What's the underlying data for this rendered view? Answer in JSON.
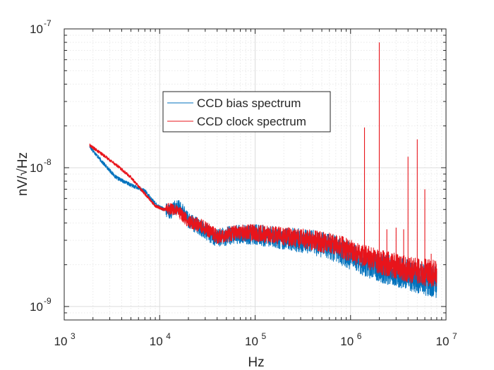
{
  "chart_data": {
    "type": "line",
    "title": "",
    "xlabel": "Hz",
    "ylabel": "nV/√Hz",
    "xscale": "log",
    "yscale": "log",
    "xlim": [
      1000,
      10000000
    ],
    "ylim": [
      8e-10,
      1e-07
    ],
    "grid": true,
    "minor_grid": true,
    "legend_position": "upper-center",
    "x_ticks": [
      {
        "value": 1000,
        "base": "10",
        "exp": "3"
      },
      {
        "value": 10000,
        "base": "10",
        "exp": "4"
      },
      {
        "value": 100000,
        "base": "10",
        "exp": "5"
      },
      {
        "value": 1000000,
        "base": "10",
        "exp": "6"
      },
      {
        "value": 10000000,
        "base": "10",
        "exp": "7"
      }
    ],
    "y_ticks": [
      {
        "value": 1e-09,
        "base": "10",
        "exp": "-9"
      },
      {
        "value": 1e-08,
        "base": "10",
        "exp": "-8"
      },
      {
        "value": 1e-07,
        "base": "10",
        "exp": "-7"
      }
    ],
    "series": [
      {
        "name": "CCD bias spectrum",
        "color": "#0072BD",
        "noise_dex": 0.09,
        "x": [
          1850,
          2500,
          3500,
          5000,
          7000,
          9000,
          11000,
          13000,
          15000,
          17000,
          20000,
          25000,
          30000,
          40000,
          60000,
          100000,
          200000,
          400000,
          700000,
          1000000,
          2000000,
          4000000,
          8000000
        ],
        "y": [
          1.42e-08,
          1.1e-08,
          8.5e-09,
          7.5e-09,
          6.8e-09,
          5.5e-09,
          5e-09,
          4.8e-09,
          5.3e-09,
          5e-09,
          4.2e-09,
          3.8e-09,
          3.5e-09,
          3.1e-09,
          3.3e-09,
          3.3e-09,
          3.1e-09,
          2.9e-09,
          2.6e-09,
          2.3e-09,
          1.9e-09,
          1.7e-09,
          1.5e-09
        ]
      },
      {
        "name": "CCD clock spectrum",
        "color": "#E8141B",
        "noise_dex": 0.075,
        "x": [
          1850,
          2500,
          3500,
          5000,
          7000,
          9000,
          11000,
          13000,
          15000,
          17000,
          20000,
          25000,
          30000,
          40000,
          60000,
          100000,
          200000,
          400000,
          700000,
          1000000,
          2000000,
          4000000,
          8000000
        ],
        "y": [
          1.45e-08,
          1.25e-08,
          1.05e-08,
          8.5e-09,
          6.5e-09,
          5.3e-09,
          5e-09,
          5.1e-09,
          4.9e-09,
          4.6e-09,
          4.1e-09,
          3.9e-09,
          3.7e-09,
          3.2e-09,
          3.4e-09,
          3.4e-09,
          3.2e-09,
          3e-09,
          2.8e-09,
          2.5e-09,
          2.1e-09,
          1.85e-09,
          1.7e-09
        ],
        "spikes": [
          {
            "x": 1400000,
            "y": 1.95e-08
          },
          {
            "x": 2000000,
            "y": 8e-08
          },
          {
            "x": 2400000,
            "y": 3.6e-09
          },
          {
            "x": 3000000,
            "y": 3.7e-09
          },
          {
            "x": 3600000,
            "y": 3.6e-09
          },
          {
            "x": 4000000,
            "y": 1.2e-08
          },
          {
            "x": 5000000,
            "y": 1.6e-08
          },
          {
            "x": 6000000,
            "y": 7e-09
          },
          {
            "x": 7000000,
            "y": 2.4e-09
          }
        ]
      }
    ]
  }
}
